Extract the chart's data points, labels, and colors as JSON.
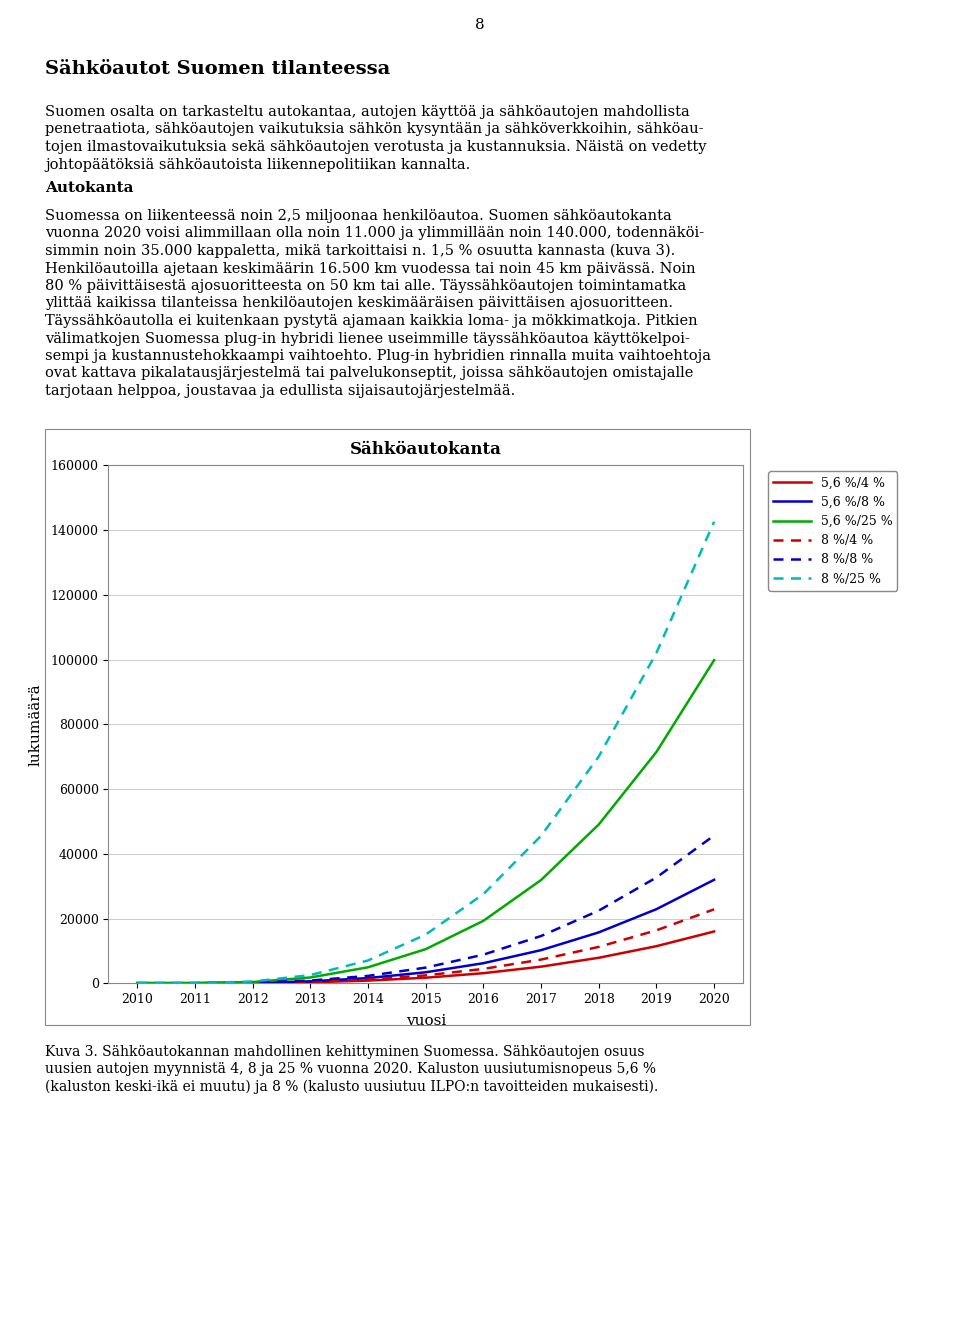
{
  "title": "Sähköautokanta",
  "xlabel": "vuosi",
  "ylabel": "lukumäärä",
  "years": [
    2010,
    2011,
    2012,
    2013,
    2014,
    2015,
    2016,
    2017,
    2018,
    2019,
    2020
  ],
  "ylim": [
    0,
    160000
  ],
  "yticks": [
    0,
    20000,
    40000,
    60000,
    80000,
    100000,
    120000,
    140000,
    160000
  ],
  "series": [
    {
      "label": "5,6 %/4 %",
      "color": "#cc0000",
      "linestyle": "solid",
      "renewal_rate": 0.056,
      "market_share_2020": 0.04
    },
    {
      "label": "5,6 %/8 %",
      "color": "#0000cc",
      "linestyle": "solid",
      "renewal_rate": 0.056,
      "market_share_2020": 0.08
    },
    {
      "label": "5,6 %/25 %",
      "color": "#00aa00",
      "linestyle": "solid",
      "renewal_rate": 0.056,
      "market_share_2020": 0.25
    },
    {
      "label": "8 %/4 %",
      "color": "#cc0000",
      "linestyle": "dashed",
      "renewal_rate": 0.08,
      "market_share_2020": 0.04
    },
    {
      "label": "8 %/8 %",
      "color": "#0000cc",
      "linestyle": "dashed",
      "renewal_rate": 0.08,
      "market_share_2020": 0.08
    },
    {
      "label": "8 %/25 %",
      "color": "#00bbbb",
      "linestyle": "dashed",
      "renewal_rate": 0.08,
      "market_share_2020": 0.25
    }
  ],
  "total_cars": 2500000,
  "page_number": "8",
  "heading": "Sähköautot Suomen tilanteessa",
  "para1_lines": [
    "Suomen osalta on tarkasteltu autokantaa, autojen käyttöä ja sähköautojen mahdollista",
    "penetraatiota, sähköautojen vaikutuksia sähkön kysyntään ja sähköverkkoihin, sähköau-",
    "tojen ilmastovaikutuksia sekä sähköautojen verotusta ja kustannuksia. Näistä on vedetty",
    "johtopäätöksiä sähköautoista liikennepolitiikan kannalta."
  ],
  "subheading": "Autokanta",
  "para2_lines": [
    "Suomessa on liikenteessä noin 2,5 miljoonaa henkilöautoa. Suomen sähköautokanta",
    "vuonna 2020 voisi alimmillaan olla noin 11.000 ja ylimmillään noin 140.000, todennäköi-",
    "simmin noin 35.000 kappaletta, mikä tarkoittaisi n. 1,5 % osuutta kannasta (kuva 3).",
    "Henkilöautoilla ajetaan keskimäärin 16.500 km vuodessa tai noin 45 km päivässä. Noin",
    "80 % päivittäisestä ajosuoritteesta on 50 km tai alle. Täyssähköautojen toimintamatka",
    "ylittää kaikissa tilanteissa henkilöautojen keskimääräisen päivittäisen ajosuoritteen.",
    "Täyssähköautolla ei kuitenkaan pystytä ajamaan kaikkia loma- ja mökkimatkoja. Pitkien",
    "välimatkojen Suomessa plug-in hybridi lienee useimmille täyssähköautoa käyttökelpoi-",
    "sempi ja kustannustehokkaampi vaihtoehto. Plug-in hybridien rinnalla muita vaihtoehtoja",
    "ovat kattava pikalatausjärjestelmä tai palvelukonseptit, joissa sähköautojen omistajalle",
    "tarjotaan helppoa, joustavaa ja edullista sijaisautojärjestelmää."
  ],
  "caption_lines": [
    "Kuva 3. Sähköautokannan mahdollinen kehittyminen Suomessa. Sähköautojen osuus",
    "uusien autojen myynnistä 4, 8 ja 25 % vuonna 2020. Kaluston uusiutumisnopeus 5,6 %",
    "(kaluston keski-ikä ei muutu) ja 8 % (kalusto uusiutuu ILPO:n tavoitteiden mukaisesti)."
  ],
  "background_color": "#ffffff",
  "chart_bg": "#ffffff",
  "grid_color": "#cccccc",
  "border_color": "#888888"
}
